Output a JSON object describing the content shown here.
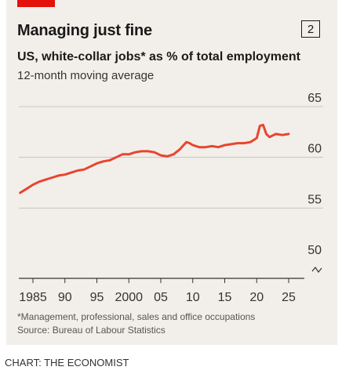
{
  "header": {
    "title": "Managing just fine",
    "chart_number": "2",
    "subtitle": "US, white-collar jobs* as % of total employment",
    "note": "12-month moving average"
  },
  "footer": {
    "footnote": "*Management, professional, sales and office occupations",
    "source": "Source: Bureau of Labour Statistics",
    "credit": "CHART: THE ECONOMIST"
  },
  "colors": {
    "accent": "#e3120b",
    "line": "#e8452f",
    "panel": "#f2efea"
  },
  "chart_data": {
    "type": "line",
    "title": "",
    "xlabel": "",
    "ylabel": "",
    "ylim": [
      50,
      65
    ],
    "xlim": [
      1985,
      2025
    ],
    "y_ticks": [
      50,
      55,
      60,
      65
    ],
    "x_ticks": [
      {
        "value": 1985,
        "label": "1985"
      },
      {
        "value": 1990,
        "label": "90"
      },
      {
        "value": 1995,
        "label": "95"
      },
      {
        "value": 2000,
        "label": "2000"
      },
      {
        "value": 2005,
        "label": "05"
      },
      {
        "value": 2010,
        "label": "10"
      },
      {
        "value": 2015,
        "label": "15"
      },
      {
        "value": 2020,
        "label": "20"
      },
      {
        "value": 2025,
        "label": "25"
      }
    ],
    "grid": true,
    "axis_break": true,
    "series": [
      {
        "name": "",
        "x": [
          1983,
          1984,
          1985,
          1986,
          1987,
          1988,
          1989,
          1990,
          1991,
          1992,
          1993,
          1994,
          1995,
          1996,
          1997,
          1998,
          1999,
          2000,
          2001,
          2002,
          2003,
          2004,
          2005,
          2006,
          2007,
          2008,
          2009,
          2009.5,
          2010,
          2011,
          2012,
          2013,
          2014,
          2015,
          2016,
          2017,
          2018,
          2019,
          2020,
          2020.5,
          2021,
          2021.5,
          2022,
          2023,
          2024,
          2025
        ],
        "y": [
          56.5,
          56.9,
          57.3,
          57.6,
          57.8,
          58.0,
          58.2,
          58.3,
          58.5,
          58.7,
          58.8,
          59.1,
          59.4,
          59.6,
          59.7,
          60.0,
          60.3,
          60.3,
          60.5,
          60.6,
          60.6,
          60.5,
          60.2,
          60.1,
          60.3,
          60.8,
          61.5,
          61.4,
          61.2,
          61.0,
          61.0,
          61.1,
          61.0,
          61.2,
          61.3,
          61.4,
          61.4,
          61.5,
          61.9,
          63.1,
          63.2,
          62.3,
          62.0,
          62.3,
          62.2,
          62.3
        ]
      }
    ]
  }
}
